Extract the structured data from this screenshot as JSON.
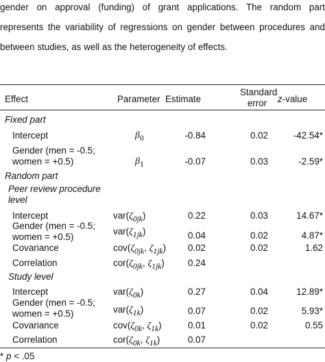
{
  "intro": {
    "line1": "gender on approval (funding) of grant applications. The random part",
    "line2": "represents the variability of regressions on gender between procedures and",
    "line3": "between studies, as well as the heterogeneity of effects."
  },
  "table": {
    "headers": {
      "effect": "Effect",
      "parameter": "Parameter",
      "estimate": "Estimate",
      "se_line1": "Standard",
      "se_line2": "error",
      "z_prefix": "z",
      "z_suffix": "-value"
    },
    "fixed_part": {
      "label": "Fixed part",
      "rows": [
        {
          "effect": "Intercept",
          "param_symbol": "β",
          "param_sub": "0",
          "estimate": "-0.84",
          "se": "0.02",
          "z": "-42.54*"
        },
        {
          "effect_line1": "Gender (men = -0.5;",
          "effect_line2": "women = +0.5)",
          "param_symbol": "β",
          "param_sub": "1",
          "estimate": "-0.07",
          "se": "0.03",
          "z": "-2.59*"
        }
      ]
    },
    "random_part": {
      "label": "Random part",
      "peer_review": {
        "label_line1": "Peer review procedure",
        "label_line2": "level",
        "rows": [
          {
            "effect": "Intercept",
            "param": "var(ζ0jk)",
            "param_fn": "var(",
            "param_a": "ζ",
            "param_a_sub": "0jk",
            "estimate": "0.22",
            "se": "0.03",
            "z": "14.67*"
          },
          {
            "effect_line1": "Gender (men = -0.5;",
            "effect_line2": "women = +0.5)",
            "param_fn": "var(",
            "param_a": "ζ",
            "param_a_sub": "1jk",
            "estimate": "0.04",
            "se": "0.02",
            "z": "4.87*"
          },
          {
            "effect": "Covariance",
            "param_fn": "cov(",
            "param_a": "ζ",
            "param_a_sub": "0jk",
            "param_b": "ζ",
            "param_b_sub": "1jk",
            "estimate": "0.02",
            "se": "0.02",
            "z": "1.62"
          },
          {
            "effect": "Correlation",
            "param_fn": "cor(",
            "param_a": "ζ",
            "param_a_sub": "0jk",
            "param_b": "ζ",
            "param_b_sub": "1jk",
            "estimate": "0.24",
            "se": "",
            "z": ""
          }
        ]
      },
      "study": {
        "label": "Study level",
        "rows": [
          {
            "effect": "Intercept",
            "param_fn": "var(",
            "param_a": "ζ",
            "param_a_sub": "0k",
            "estimate": "0.27",
            "se": "0.04",
            "z": "12.89*"
          },
          {
            "effect_line1": "Gender (men = -0.5;",
            "effect_line2": "women = +0.5)",
            "param_fn": "var(",
            "param_a": "ζ",
            "param_a_sub": "1k",
            "estimate": "0.07",
            "se": "0.02",
            "z": "5.93*"
          },
          {
            "effect": "Covariance",
            "param_fn": "cov(",
            "param_a": "ζ",
            "param_a_sub": "0k",
            "param_b": "ζ",
            "param_b_sub": "1k",
            "estimate": "0.01",
            "se": "0.02",
            "z": "0.55"
          },
          {
            "effect": "Correlation",
            "param_fn": "cor(",
            "param_a": "ζ",
            "param_a_sub": "0k",
            "param_b": "ζ",
            "param_b_sub": "1k",
            "estimate": "0.07",
            "se": "",
            "z": ""
          }
        ]
      }
    }
  },
  "footnote": {
    "star": "*",
    "p": "p",
    "rest": " < .05"
  }
}
